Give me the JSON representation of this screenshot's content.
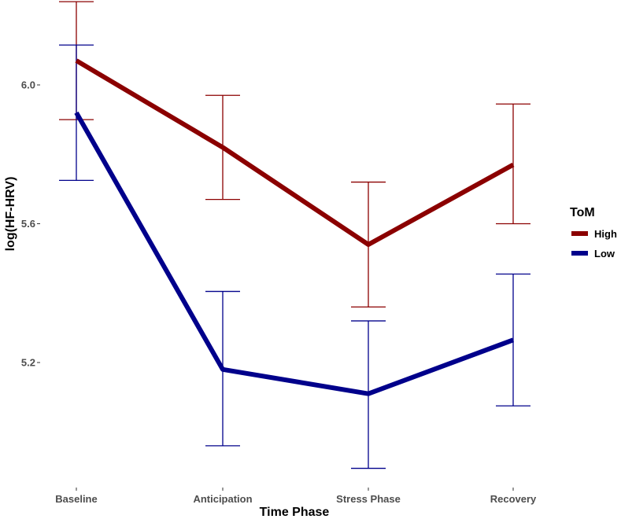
{
  "chart_data": {
    "type": "line",
    "title": "",
    "xlabel": "Time Phase",
    "ylabel": "log(HF-HRV)",
    "categories": [
      "Baseline",
      "Anticipation",
      "Stress Phase",
      "Recovery"
    ],
    "yticks": [
      "5.2",
      "5.6",
      "6.0"
    ],
    "ylim": [
      4.85,
      6.25
    ],
    "grid": false,
    "legend": {
      "title": "ToM",
      "position": "right"
    },
    "series": [
      {
        "name": "High",
        "color": "#8b0000",
        "values": [
          6.07,
          5.82,
          5.54,
          5.77
        ],
        "lower": [
          5.9,
          5.67,
          5.36,
          5.6
        ],
        "upper": [
          6.24,
          5.97,
          5.72,
          5.945
        ]
      },
      {
        "name": "Low",
        "color": "#00008b",
        "values": [
          5.92,
          5.18,
          5.11,
          5.265
        ],
        "lower": [
          5.725,
          4.96,
          4.895,
          5.075
        ],
        "upper": [
          6.115,
          5.405,
          5.32,
          5.455
        ]
      }
    ]
  }
}
